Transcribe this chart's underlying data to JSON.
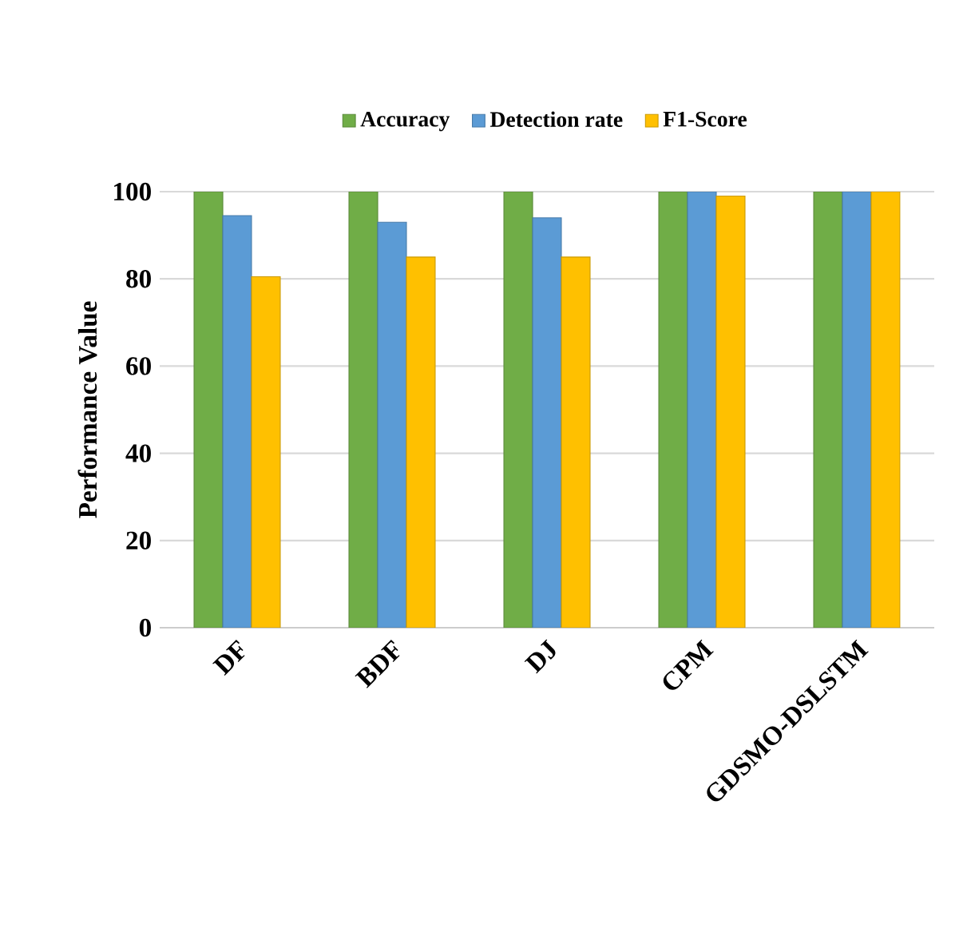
{
  "chart_data": {
    "type": "bar",
    "ylabel": "Performance Value",
    "categories": [
      "DF",
      "BDF",
      "DJ",
      "CPM",
      "GDSMO-DSLSTM"
    ],
    "series": [
      {
        "name": "Accuracy",
        "color": "#70ad47",
        "values": [
          100,
          100,
          100,
          100,
          100
        ]
      },
      {
        "name": "Detection rate",
        "color": "#5b9bd5",
        "values": [
          94.5,
          93,
          94,
          100,
          100
        ]
      },
      {
        "name": "F1-Score",
        "color": "#ffc000",
        "values": [
          80.5,
          85,
          85,
          99,
          100
        ]
      }
    ],
    "ylim": [
      0,
      100
    ],
    "yticks": [
      0,
      20,
      40,
      60,
      80,
      100
    ],
    "grid": "y",
    "legend": "top"
  }
}
